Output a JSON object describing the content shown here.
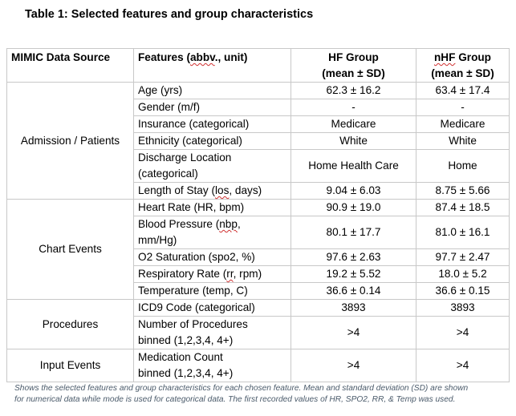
{
  "title": "Table 1: Selected features and group characteristics",
  "headers": {
    "source": "MIMIC Data Source",
    "features_pre": "Features (",
    "features_sq": "abbv",
    "features_post": "., unit)",
    "hf_line1": "HF Group",
    "hf_line2": "(mean ± SD)",
    "nhf_sq": "nHF",
    "nhf_line1_post": " Group",
    "nhf_line2": "(mean ± SD)"
  },
  "groups": [
    {
      "source": "Admission / Patients",
      "rows": [
        {
          "feature": "Age (yrs)",
          "hf": "62.3 ± 16.2",
          "nhf": "63.4 ± 17.4"
        },
        {
          "feature": "Gender (m/f)",
          "hf": "-",
          "nhf": "-"
        },
        {
          "feature": "Insurance (categorical)",
          "hf": "Medicare",
          "nhf": "Medicare"
        },
        {
          "feature": "Ethnicity (categorical)",
          "hf": "White",
          "nhf": "White"
        },
        {
          "feature_line1": "Discharge Location",
          "feature_line2": "(categorical)",
          "hf": "Home Health Care",
          "nhf": "Home"
        },
        {
          "feature_pre": "Length of Stay (",
          "feature_sq": "los",
          "feature_post": ", days)",
          "hf": "9.04 ± 6.03",
          "nhf": "8.75 ± 5.66"
        }
      ]
    },
    {
      "source": "Chart Events",
      "rows": [
        {
          "feature": "Heart Rate (HR, bpm)",
          "hf": "90.9 ± 19.0",
          "nhf": "87.4 ± 18.5"
        },
        {
          "feature_pre": "Blood Pressure (",
          "feature_sq": "nbp",
          "feature_post": ",",
          "feature_line2": "mm/Hg)",
          "hf": "80.1 ± 17.7",
          "nhf": "81.0 ± 16.1"
        },
        {
          "feature": "O2 Saturation (spo2, %)",
          "hf": "97.6 ± 2.63",
          "nhf": "97.7 ± 2.47"
        },
        {
          "feature_pre": "Respiratory Rate (",
          "feature_sq": "rr",
          "feature_post": ", rpm)",
          "hf": "19.2 ± 5.52",
          "nhf": "18.0 ± 5.2"
        },
        {
          "feature": "Temperature (temp, C)",
          "hf": "36.6 ± 0.14",
          "nhf": "36.6 ± 0.15"
        }
      ]
    },
    {
      "source": "Procedures",
      "rows": [
        {
          "feature": "ICD9 Code (categorical)",
          "hf": "3893",
          "nhf": "3893"
        },
        {
          "feature_line1": "Number of Procedures",
          "feature_line2": "binned (1,2,3,4, 4+)",
          "hf": ">4",
          "nhf": ">4"
        }
      ]
    },
    {
      "source": "Input Events",
      "rows": [
        {
          "feature_line1": "Medication Count",
          "feature_line2": "binned (1,2,3,4, 4+)",
          "hf": ">4",
          "nhf": ">4"
        }
      ]
    }
  ],
  "caption": {
    "line1": "Shows the selected features and group characteristics for each chosen feature. Mean and standard deviation (SD) are shown",
    "line2": "for numerical data while mode is used for categorical data. The first recorded values of HR, SPO2, RR, & Temp was used."
  }
}
